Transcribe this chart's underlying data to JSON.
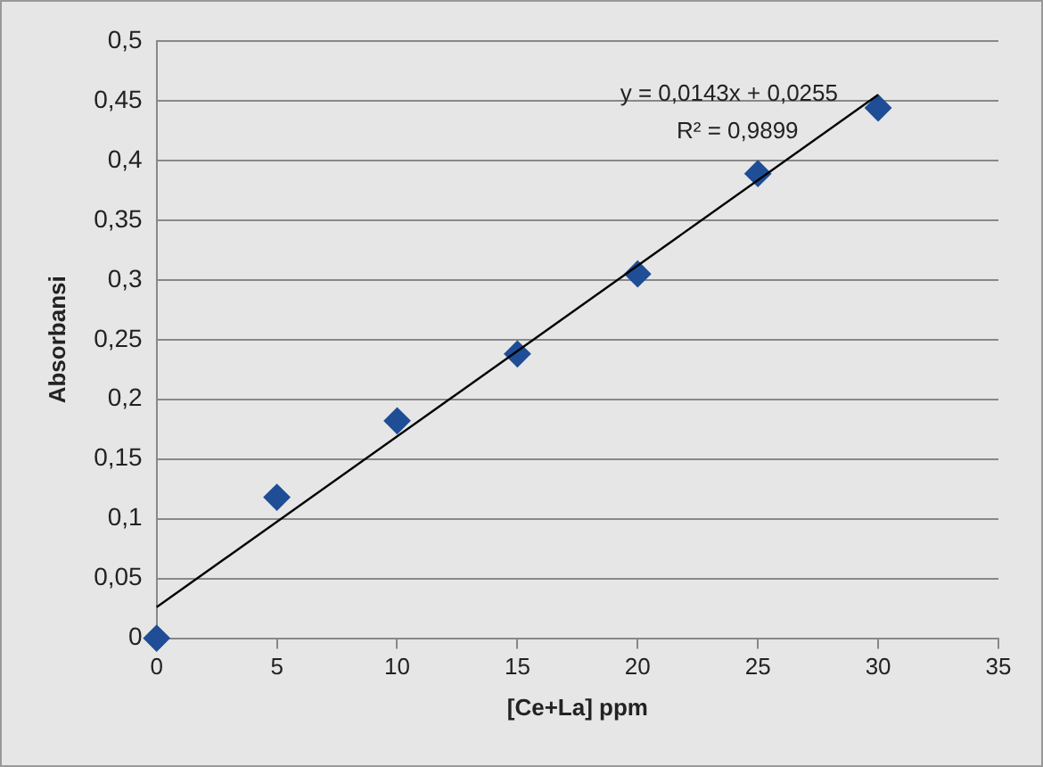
{
  "chart_data": {
    "type": "scatter",
    "xlabel": "[Ce+La] ppm",
    "ylabel": "Absorbansi",
    "xlim": [
      0,
      35
    ],
    "xticks": [
      0,
      5,
      10,
      15,
      20,
      25,
      30,
      35
    ],
    "ylim": [
      0,
      0.5
    ],
    "yticks": [
      {
        "value": 0,
        "label": "0"
      },
      {
        "value": 0.05,
        "label": "0,05"
      },
      {
        "value": 0.1,
        "label": "0,1"
      },
      {
        "value": 0.15,
        "label": "0,15"
      },
      {
        "value": 0.2,
        "label": "0,2"
      },
      {
        "value": 0.25,
        "label": "0,25"
      },
      {
        "value": 0.3,
        "label": "0,3"
      },
      {
        "value": 0.35,
        "label": "0,35"
      },
      {
        "value": 0.4,
        "label": "0,4"
      },
      {
        "value": 0.45,
        "label": "0,45"
      },
      {
        "value": 0.5,
        "label": "0,5"
      }
    ],
    "grid": "y",
    "legend": false,
    "marker": "diamond",
    "series": [
      {
        "color": "#1f4e96",
        "x": [
          0,
          5,
          10,
          15,
          20,
          25,
          30
        ],
        "values": [
          0,
          0.118,
          0.182,
          0.238,
          0.305,
          0.389,
          0.444
        ]
      },
      {
        "type": "line",
        "color": "#000000",
        "marker": "none",
        "line_style": "solid",
        "x": [
          0,
          30
        ],
        "values": [
          0.026,
          0.455
        ]
      }
    ],
    "annotations": [
      "y = 0,0143x + 0,0255",
      "R² = 0,9899"
    ]
  }
}
